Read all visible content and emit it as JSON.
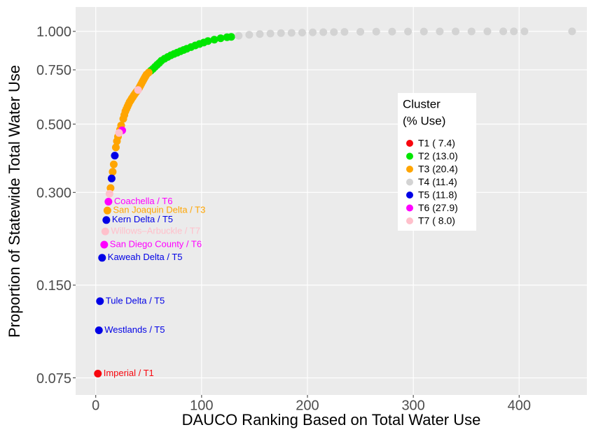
{
  "chart_data": {
    "type": "scatter",
    "x_label": "DAUCO Ranking Based on Total Water Use",
    "y_label": "Proportion of Statewide Total Water Use",
    "legend_title": [
      "Cluster",
      "(% Use)"
    ],
    "xlim": [
      -19,
      464
    ],
    "xticks": [
      0,
      100,
      200,
      300,
      400
    ],
    "ylim": [
      0.066,
      1.2
    ],
    "log_y": true,
    "grid": true,
    "yticks": [
      {
        "value": 0.075,
        "label": "0.075"
      },
      {
        "value": 0.15,
        "label": "0.150"
      },
      {
        "value": 0.3,
        "label": "0.300"
      },
      {
        "value": 0.5,
        "label": "0.500"
      },
      {
        "value": 0.75,
        "label": "0.750"
      },
      {
        "value": 1.0,
        "label": "1.000"
      }
    ],
    "series": [
      {
        "name": "T1 ( 7.4)",
        "color": "#F8070E",
        "x": [
          2
        ],
        "values": [
          0.0774
        ],
        "labels": [
          "Imperial / T1"
        ]
      },
      {
        "name": "T2 (13.0)",
        "color": "#00E600",
        "x": [
          52,
          54,
          56,
          58,
          60,
          62,
          65,
          68,
          71,
          74,
          77,
          80,
          83,
          86,
          90,
          94,
          98,
          102,
          106,
          112,
          118,
          124,
          128
        ],
        "values": [
          0.745,
          0.755,
          0.767,
          0.779,
          0.79,
          0.803,
          0.815,
          0.826,
          0.836,
          0.845,
          0.853,
          0.862,
          0.87,
          0.878,
          0.889,
          0.9,
          0.91,
          0.92,
          0.93,
          0.94,
          0.95,
          0.957,
          0.96
        ],
        "labels": [
          null,
          null,
          null,
          null,
          null,
          null,
          null,
          null,
          null,
          null,
          null,
          null,
          null,
          null,
          null,
          null,
          null,
          null,
          null,
          null,
          null,
          null,
          null
        ]
      },
      {
        "name": "T3 (20.4)",
        "color": "#FFA500",
        "x": [
          11,
          14,
          16,
          17,
          19,
          20,
          21,
          23,
          24,
          26,
          27,
          28,
          29,
          30,
          31,
          32,
          33,
          34,
          35,
          36,
          37,
          38,
          39,
          41,
          42,
          43,
          44,
          45,
          46,
          47,
          48,
          50
        ],
        "values": [
          0.262,
          0.31,
          0.35,
          0.37,
          0.42,
          0.44,
          0.455,
          0.48,
          0.495,
          0.52,
          0.535,
          0.55,
          0.56,
          0.57,
          0.58,
          0.59,
          0.597,
          0.605,
          0.612,
          0.62,
          0.627,
          0.634,
          0.64,
          0.655,
          0.665,
          0.675,
          0.685,
          0.695,
          0.705,
          0.715,
          0.724,
          0.735
        ],
        "labels": [
          "San Joaquin Delta / T3",
          null,
          null,
          null,
          null,
          null,
          null,
          null,
          null,
          null,
          null,
          null,
          null,
          null,
          null,
          null,
          null,
          null,
          null,
          null,
          null,
          null,
          null,
          null,
          null,
          null,
          null,
          null,
          null,
          null,
          null,
          null
        ]
      },
      {
        "name": "T4 (11.4)",
        "color": "#D3D3D3",
        "x": [
          135,
          145,
          155,
          165,
          175,
          185,
          195,
          205,
          215,
          225,
          235,
          250,
          265,
          280,
          295,
          310,
          325,
          340,
          355,
          370,
          385,
          395,
          405,
          450
        ],
        "values": [
          0.968,
          0.975,
          0.98,
          0.984,
          0.987,
          0.989,
          0.991,
          0.993,
          0.994,
          0.995,
          0.996,
          0.997,
          0.998,
          0.998,
          0.999,
          0.999,
          0.9993,
          0.9995,
          0.9997,
          0.9998,
          0.9999,
          0.99995,
          1.0,
          1.0
        ],
        "labels": [
          null,
          null,
          null,
          null,
          null,
          null,
          null,
          null,
          null,
          null,
          null,
          null,
          null,
          null,
          null,
          null,
          null,
          null,
          null,
          null,
          null,
          null,
          null,
          null
        ]
      },
      {
        "name": "T5 (11.8)",
        "color": "#0000E6",
        "x": [
          3,
          4,
          6,
          10,
          15,
          18
        ],
        "values": [
          0.107,
          0.133,
          0.184,
          0.244,
          0.333,
          0.395
        ],
        "labels": [
          "Westlands / T5",
          "Tule Delta / T5",
          "Kaweah Delta / T5",
          "Kern Delta / T5",
          null,
          null
        ]
      },
      {
        "name": "T6 (27.9)",
        "color": "#FF00FF",
        "x": [
          8,
          12,
          25
        ],
        "values": [
          0.203,
          0.28,
          0.477
        ],
        "labels": [
          "San Diego County / T6",
          "Coachella / T6",
          null
        ]
      },
      {
        "name": "T7 ( 8.0)",
        "color": "#FFC0CB",
        "x": [
          9,
          13,
          22,
          40
        ],
        "values": [
          0.224,
          0.297,
          0.468,
          0.645
        ],
        "labels": [
          "Willows–Arbuckle / T7",
          null,
          null,
          null
        ]
      }
    ]
  }
}
